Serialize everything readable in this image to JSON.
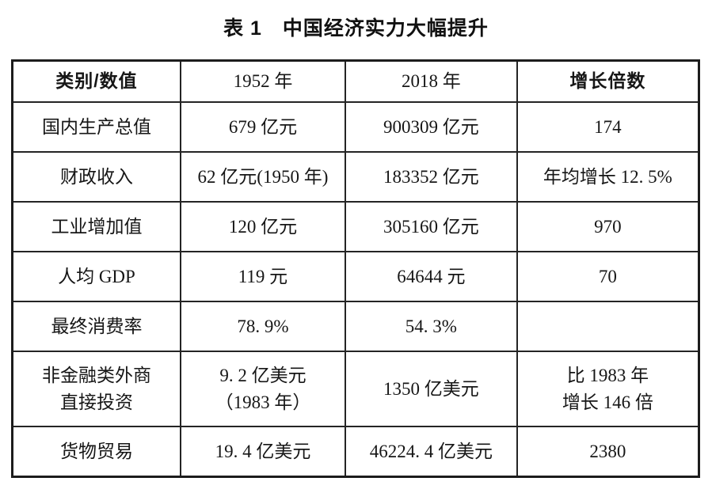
{
  "title": "表 1　中国经济实力大幅提升",
  "table": {
    "headers": [
      "类别/数值",
      "1952 年",
      "2018 年",
      "增长倍数"
    ],
    "rows": [
      [
        "国内生产总值",
        "679 亿元",
        "900309 亿元",
        "174"
      ],
      [
        "财政收入",
        "62 亿元(1950 年)",
        "183352 亿元",
        "年均增长 12. 5%"
      ],
      [
        "工业增加值",
        "120 亿元",
        "305160 亿元",
        "970"
      ],
      [
        "人均 GDP",
        "119 元",
        "64644 元",
        "70"
      ],
      [
        "最终消费率",
        "78. 9%",
        "54. 3%",
        ""
      ],
      [
        "非金融类外商\n直接投资",
        "9. 2 亿美元\n（1983 年）",
        "1350 亿美元",
        "比 1983 年\n增长 146 倍"
      ],
      [
        "货物贸易",
        "19. 4 亿美元",
        "46224. 4 亿美元",
        "2380"
      ]
    ]
  }
}
